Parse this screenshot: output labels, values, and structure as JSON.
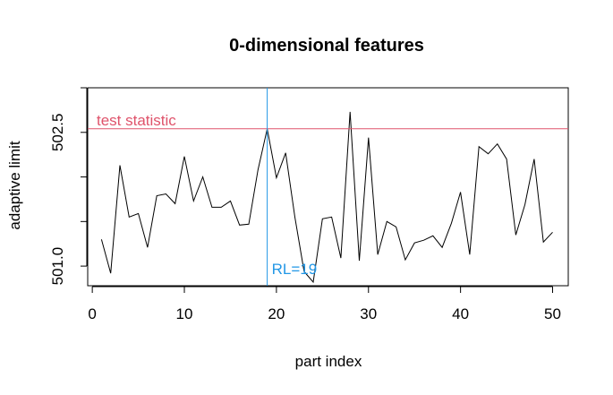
{
  "chart_data": {
    "type": "line",
    "title": "0-dimensional features",
    "xlabel": "part index",
    "ylabel": "adaptive limit",
    "xlim": [
      -0.5,
      51.7
    ],
    "ylim": [
      500.78,
      503.0
    ],
    "x_ticks": [
      0,
      10,
      20,
      30,
      40,
      50
    ],
    "y_ticks": [
      501.0,
      501.5,
      502.0,
      502.5,
      503.0
    ],
    "y_tick_labels": [
      "501.0",
      "",
      "",
      "502.5",
      ""
    ],
    "grid": false,
    "series": [
      {
        "x": [
          1,
          2,
          3,
          4,
          5,
          6,
          7,
          8,
          9,
          10,
          11,
          12,
          13,
          14,
          15,
          16,
          17,
          18,
          19,
          20,
          21,
          22,
          23,
          24,
          25,
          26,
          27,
          28,
          29,
          30,
          31,
          32,
          33,
          34,
          35,
          36,
          37,
          38,
          39,
          40,
          41,
          42,
          43,
          44,
          45,
          46,
          47,
          48,
          49,
          50
        ],
        "values": [
          501.3,
          500.92,
          502.13,
          501.55,
          501.59,
          501.21,
          501.79,
          501.81,
          501.7,
          502.23,
          501.73,
          502.0,
          501.66,
          501.66,
          501.73,
          501.46,
          501.47,
          502.08,
          502.54,
          501.99,
          502.27,
          501.55,
          500.94,
          500.82,
          501.53,
          501.55,
          501.09,
          502.73,
          501.06,
          502.44,
          501.13,
          501.5,
          501.44,
          501.07,
          501.26,
          501.29,
          501.34,
          501.21,
          501.48,
          501.83,
          501.13,
          502.34,
          502.26,
          502.37,
          502.2,
          501.35,
          501.69,
          502.2,
          501.27,
          501.38
        ]
      }
    ],
    "reference_lines": [
      {
        "orientation": "horizontal",
        "value": 502.54,
        "label": "test statistic",
        "color": "#DF536B"
      },
      {
        "orientation": "vertical",
        "value": 19,
        "label": "RL=19",
        "color": "#2297E6"
      }
    ]
  }
}
